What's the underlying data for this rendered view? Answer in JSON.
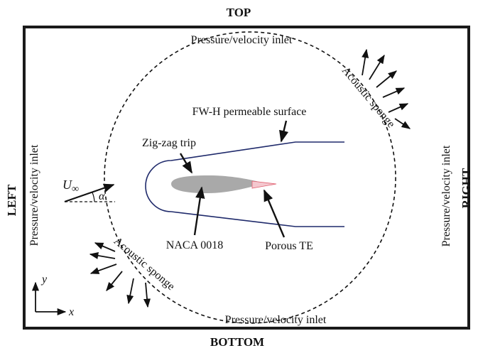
{
  "labels": {
    "top": "TOP",
    "bottom": "BOTTOM",
    "left": "LEFT",
    "right": "RIGHT",
    "inlet_top": "Pressure/velocity inlet",
    "inlet_bottom": "Pressure/velocity inlet",
    "inlet_left": "Pressure/velocity inlet",
    "inlet_right": "Pressure/velocity inlet",
    "fwh_surface": "FW-H permeable surface",
    "zigzag_trip": "Zig-zag trip",
    "naca": "NACA 0018",
    "porous_te": "Porous TE",
    "sponge_top": "Acoustic sponge",
    "sponge_bottom": "Acoustic sponge",
    "freestream_symbol": "U",
    "freestream_subscript": "∞",
    "alpha_symbol": "α",
    "axis_x": "x",
    "axis_y": "y"
  },
  "colors": {
    "border": "#1a1a1a",
    "fwh_line": "#1f2a6b",
    "airfoil_fill": "#a9a9a9",
    "porous_te": "#e06070"
  }
}
